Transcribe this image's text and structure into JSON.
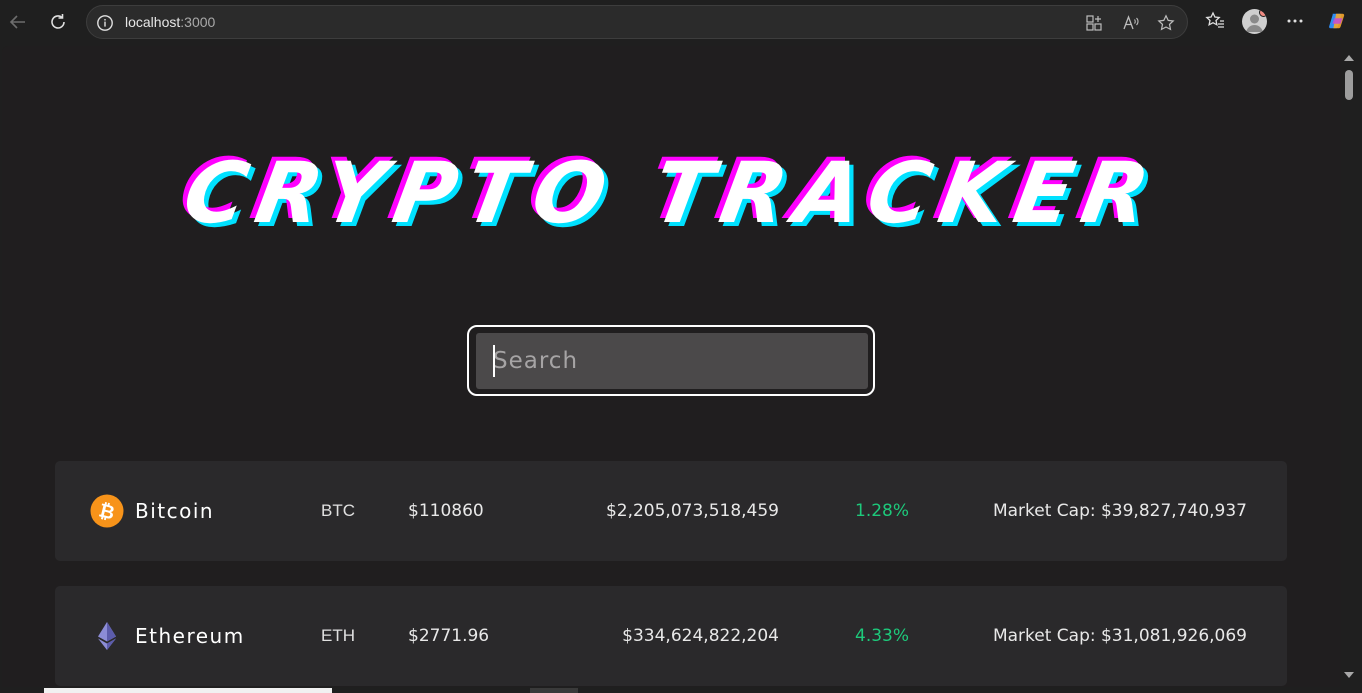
{
  "browser": {
    "url_host": "localhost",
    "url_port": ":3000"
  },
  "page": {
    "title": "CRYPTO TRACKER",
    "search": {
      "placeholder": "Search",
      "value": ""
    }
  },
  "coins": [
    {
      "name": "Bitcoin",
      "symbol": "BTC",
      "price": "$110860",
      "volume": "$2,205,073,518,459",
      "change": "1.28%",
      "market_cap": "Market Cap: $39,827,740,937",
      "icon": "bitcoin-icon",
      "icon_color": "#f7931a",
      "change_color": "#1dc97b"
    },
    {
      "name": "Ethereum",
      "symbol": "ETH",
      "price": "$2771.96",
      "volume": "$334,624,822,204",
      "change": "4.33%",
      "market_cap": "Market Cap: $31,081,926,069",
      "icon": "ethereum-icon",
      "icon_color": "#8c8cd6",
      "change_color": "#1dc97b"
    }
  ],
  "colors": {
    "page_bg": "#201e1f",
    "row_bg": "#2a292b",
    "title_shadow_magenta": "#ff00ff",
    "title_shadow_cyan": "#00e1ff"
  }
}
